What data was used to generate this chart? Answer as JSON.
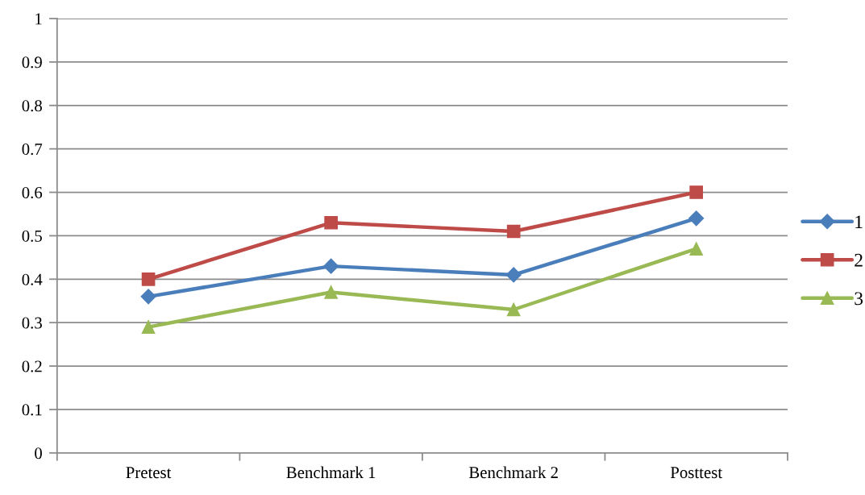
{
  "chart_data": {
    "type": "line",
    "categories": [
      "Pretest",
      "Benchmark 1",
      "Benchmark 2",
      "Posttest"
    ],
    "series": [
      {
        "name": "1",
        "color": "#4a7ebb",
        "marker": "diamond",
        "values": [
          0.36,
          0.43,
          0.41,
          0.54
        ]
      },
      {
        "name": "2",
        "color": "#be4b48",
        "marker": "square",
        "values": [
          0.4,
          0.53,
          0.51,
          0.6
        ]
      },
      {
        "name": "3",
        "color": "#98b954",
        "marker": "triangle",
        "values": [
          0.29,
          0.37,
          0.33,
          0.47
        ]
      }
    ],
    "ylim": [
      0,
      1
    ],
    "yticks": [
      0,
      0.1,
      0.2,
      0.3,
      0.4,
      0.5,
      0.6,
      0.7,
      0.8,
      0.9,
      1
    ],
    "grid": "y",
    "legend": "right",
    "line_style": "solid"
  }
}
